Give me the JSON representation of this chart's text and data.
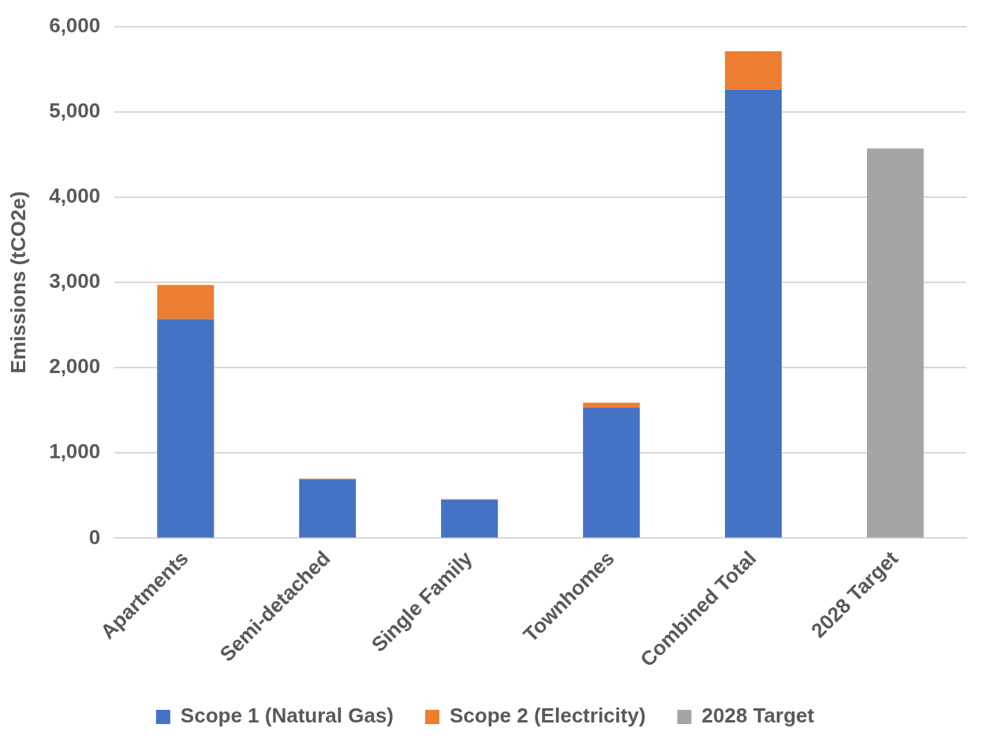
{
  "chart_data": {
    "type": "bar",
    "ylabel": "Emissions (tCO2e)",
    "categories": [
      "Apartments",
      "Semi-detached",
      "Single Family",
      "Townhomes",
      "Combined Total",
      "2028 Target"
    ],
    "series": [
      {
        "name": "Scope 1 (Natural Gas)",
        "color": "#4472c4",
        "values": [
          2570,
          690,
          450,
          1530,
          5260,
          null
        ]
      },
      {
        "name": "Scope 2 (Electricity)",
        "color": "#ed7d31",
        "values": [
          400,
          10,
          10,
          60,
          450,
          null
        ]
      },
      {
        "name": "2028 Target",
        "color": "#a5a5a5",
        "values": [
          null,
          null,
          null,
          null,
          null,
          4570
        ]
      }
    ],
    "stacked": true,
    "ylim": [
      0,
      6000
    ],
    "yticks": [
      0,
      {
        "value": 1000,
        "label": "1,000"
      },
      {
        "value": 2000,
        "label": "2,000"
      },
      {
        "value": 3000,
        "label": "3,000"
      },
      {
        "value": 4000,
        "label": "4,000"
      },
      {
        "value": 5000,
        "label": "5,000"
      },
      {
        "value": 6000,
        "label": "6,000"
      }
    ],
    "grid": "y",
    "legend": "bottom"
  }
}
